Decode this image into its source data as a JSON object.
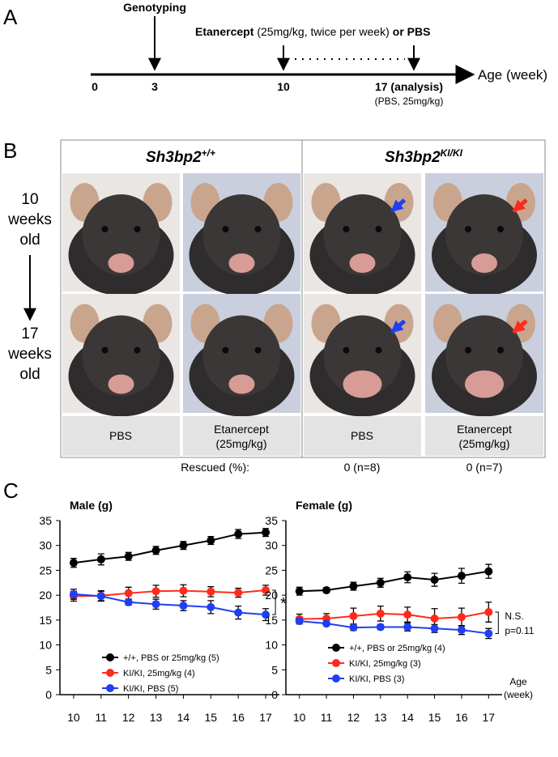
{
  "panel_a": {
    "label": "A",
    "genotyping": "Genotyping",
    "treatment_drug": "Etanercept",
    "treatment_dose": "(25mg/kg, twice per week)",
    "treatment_alt": "or PBS",
    "timeline_labels": [
      "0",
      "3",
      "10",
      "17 (analysis)"
    ],
    "analysis_note": "(PBS, 25mg/kg)",
    "axis_label": "Age (week)"
  },
  "panel_b": {
    "label": "B",
    "genotypes": [
      {
        "gene": "Sh3bp2",
        "allele": "+/+"
      },
      {
        "gene": "Sh3bp2",
        "allele": "KI/KI"
      }
    ],
    "rows": [
      [
        "10",
        "weeks",
        "old"
      ],
      [
        "17",
        "weeks",
        "old"
      ]
    ],
    "treatments": [
      [
        "PBS"
      ],
      [
        "Etanercept",
        "(25mg/kg)"
      ],
      [
        "PBS"
      ],
      [
        "Etanercept",
        "(25mg/kg)"
      ]
    ],
    "rescued_label": "Rescued (%):",
    "rescued": [
      "0 (n=8)",
      "0 (n=7)"
    ]
  },
  "panel_c_label": "C",
  "chart_data": [
    {
      "type": "line",
      "title": "Male (g)",
      "x": [
        10,
        11,
        12,
        13,
        14,
        15,
        16,
        17
      ],
      "xlim": [
        9.5,
        17.5
      ],
      "xticks": [
        10,
        11,
        12,
        13,
        14,
        15,
        16,
        17
      ],
      "ylim": [
        0,
        35
      ],
      "yticks": [
        0,
        5,
        10,
        15,
        20,
        25,
        30,
        35
      ],
      "legend": "lower left",
      "series": [
        {
          "name": "+/+, PBS or 25mg/kg (5)",
          "color": "#000000",
          "values": [
            26.5,
            27.2,
            27.8,
            29,
            30,
            31,
            32.3,
            32.6
          ],
          "errors": [
            0.9,
            1.1,
            0.8,
            0.8,
            0.8,
            0.8,
            0.9,
            0.8
          ]
        },
        {
          "name": "KI/KI, 25mg/kg (4)",
          "color": "#ff2a1a",
          "values": [
            19.8,
            19.9,
            20.4,
            20.8,
            20.9,
            20.7,
            20.5,
            21.0
          ],
          "errors": [
            1,
            1,
            1.2,
            1.2,
            1.2,
            1,
            0.9,
            1
          ]
        },
        {
          "name": "KI/KI, PBS (5)",
          "color": "#1f3ff0",
          "values": [
            20.2,
            19.8,
            18.6,
            18.2,
            17.9,
            17.6,
            16.5,
            16.1
          ],
          "errors": [
            1,
            1,
            0.6,
            1,
            1,
            1.3,
            1.3,
            1.2
          ]
        }
      ],
      "annotations": [
        "*"
      ]
    },
    {
      "type": "line",
      "title": "Female (g)",
      "x": [
        10,
        11,
        12,
        13,
        14,
        15,
        16,
        17
      ],
      "xlim": [
        9.5,
        17.5
      ],
      "xticks": [
        10,
        11,
        12,
        13,
        14,
        15,
        16,
        17
      ],
      "ylim": [
        0,
        35
      ],
      "yticks": [
        0,
        5,
        10,
        15,
        20,
        25,
        30,
        35
      ],
      "legend": "lower left",
      "x_label": [
        "Age",
        "(week)"
      ],
      "series": [
        {
          "name": "+/+, PBS or 25mg/kg (4)",
          "color": "#000000",
          "values": [
            20.8,
            21,
            21.8,
            22.5,
            23.6,
            23.1,
            23.9,
            24.8
          ],
          "errors": [
            0.8,
            0.5,
            0.8,
            0.9,
            1.1,
            1.3,
            1.5,
            1.4
          ]
        },
        {
          "name": "KI/KI, 25mg/kg (3)",
          "color": "#ff2a1a",
          "values": [
            15.2,
            15.3,
            15.8,
            16.3,
            16.1,
            15.3,
            15.6,
            16.6
          ],
          "errors": [
            1,
            1,
            1.6,
            1.5,
            1.5,
            2,
            1.8,
            2
          ]
        },
        {
          "name": "KI/KI, PBS (3)",
          "color": "#1f3ff0",
          "values": [
            14.8,
            14.3,
            13.5,
            13.6,
            13.6,
            13.3,
            13.0,
            12.3
          ],
          "errors": [
            0.5,
            0.4,
            0.6,
            0.5,
            0.8,
            0.8,
            0.9,
            1
          ]
        }
      ],
      "annotations": [
        "N.S.",
        "p=0.11"
      ]
    }
  ]
}
